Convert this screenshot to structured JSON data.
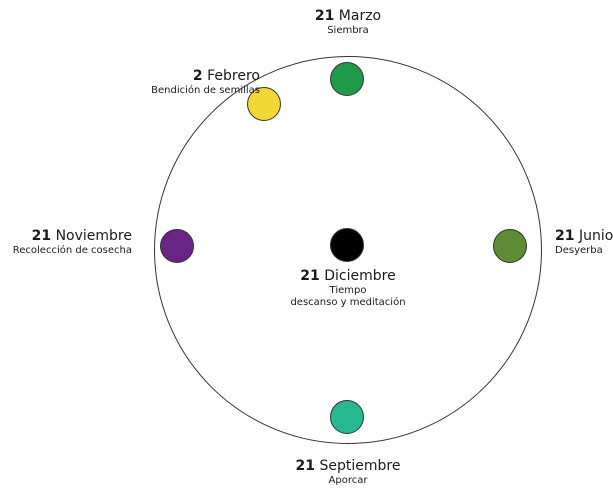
{
  "colors": {
    "marzo": "#1f9a4a",
    "febrero": "#f1d832",
    "noviembre": "#6a2484",
    "junio": "#5e8b36",
    "diciembre": "#000000",
    "septiembre": "#26b890"
  },
  "events": {
    "marzo": {
      "day": "21",
      "month": "Marzo",
      "desc": "Siembra"
    },
    "febrero": {
      "day": "2",
      "month": "Febrero",
      "desc": "Bendición de semillas"
    },
    "noviembre": {
      "day": "21",
      "month": "Noviembre",
      "desc": "Recolección de cosecha"
    },
    "junio": {
      "day": "21",
      "month": "Junio",
      "desc": "Desyerba"
    },
    "diciembre": {
      "day": "21",
      "month": "Diciembre",
      "desc1": "Tiempo",
      "desc2": "descanso y meditación"
    },
    "septiembre": {
      "day": "21",
      "month": "Septiembre",
      "desc": "Aporcar"
    }
  }
}
